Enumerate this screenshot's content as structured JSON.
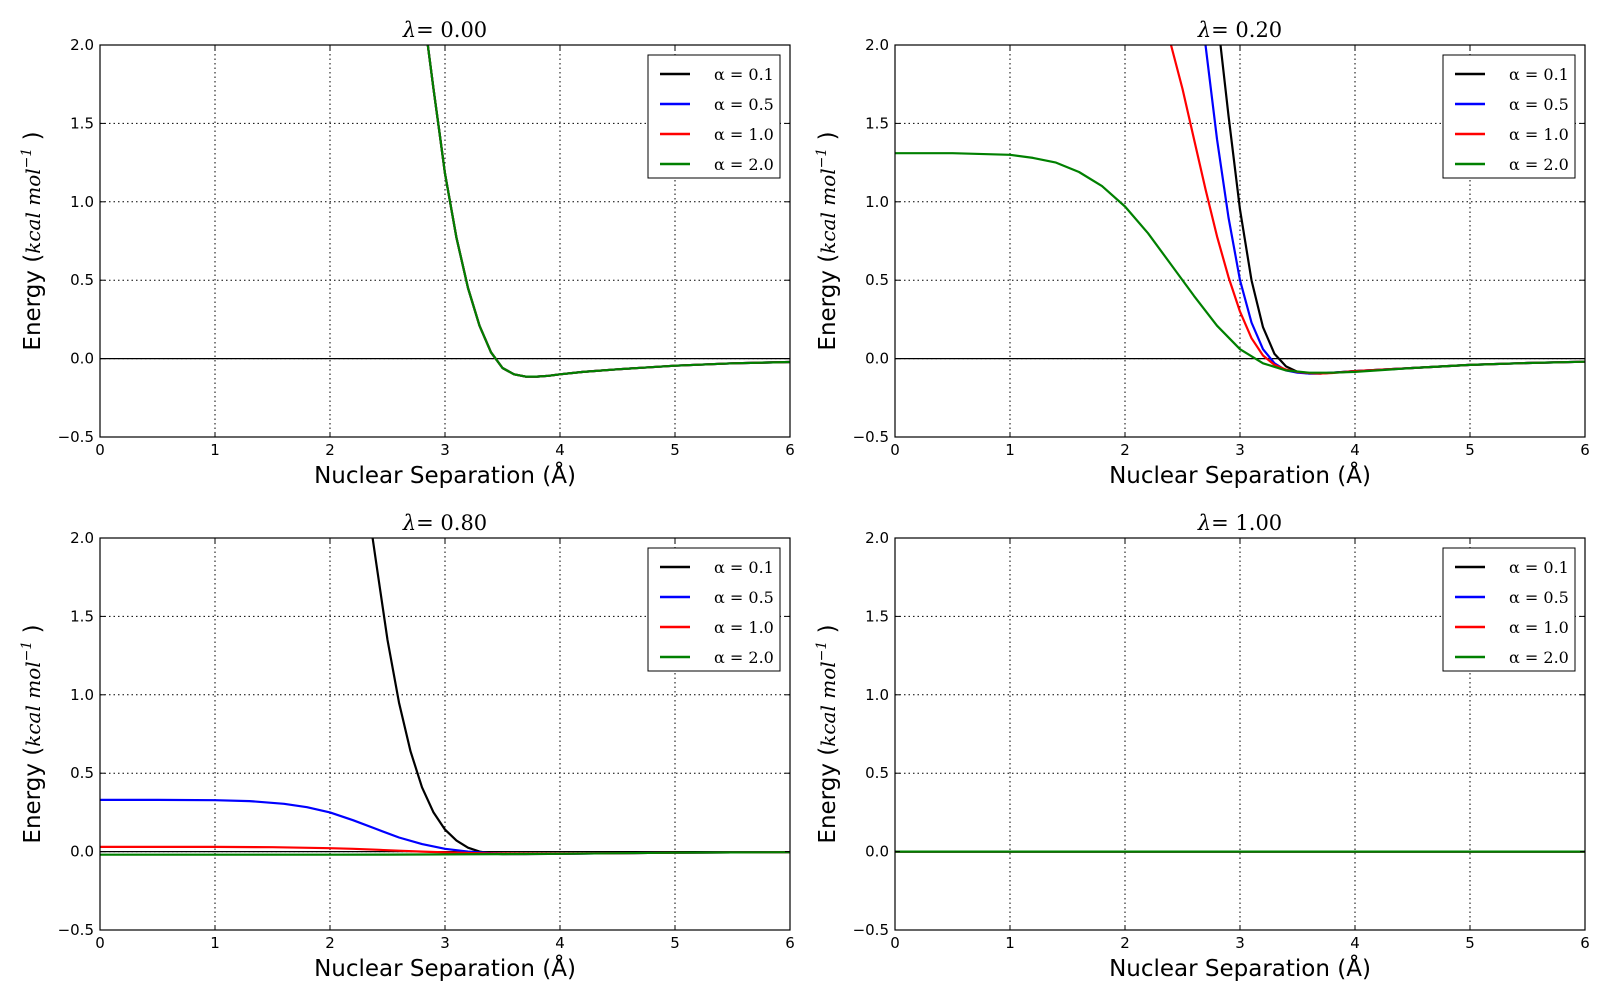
{
  "chart_data": [
    {
      "type": "line",
      "title_prefix": "λ",
      "title": "= 0.00",
      "xlabel": "Nuclear Separation (Å)",
      "ylabel": "Energy (",
      "ylabel_unit": "kcal  mol",
      "ylabel_exp": "−1",
      "ylabel_close": ")",
      "xlim": [
        0,
        6
      ],
      "ylim": [
        -0.5,
        2.0
      ],
      "xticks": [
        "0",
        "1",
        "2",
        "3",
        "4",
        "5",
        "6"
      ],
      "yticks": [
        "−0.5",
        "0.0",
        "0.5",
        "1.0",
        "1.5",
        "2.0"
      ],
      "grid": true,
      "legend": "top-right",
      "series": [
        {
          "name": "α = 0.1",
          "color": "#000000",
          "x": [
            2.85,
            2.9,
            2.95,
            3.0,
            3.1,
            3.2,
            3.3,
            3.4,
            3.5,
            3.6,
            3.7,
            3.8,
            3.9,
            4.0,
            4.2,
            4.5,
            5.0,
            5.5,
            6.0
          ],
          "y": [
            2.0,
            1.72,
            1.45,
            1.18,
            0.77,
            0.45,
            0.21,
            0.04,
            -0.06,
            -0.1,
            -0.115,
            -0.115,
            -0.11,
            -0.1,
            -0.085,
            -0.068,
            -0.045,
            -0.03,
            -0.022
          ]
        },
        {
          "name": "α = 0.5",
          "color": "#0000ff",
          "x": [
            2.85,
            2.9,
            2.95,
            3.0,
            3.1,
            3.2,
            3.3,
            3.4,
            3.5,
            3.6,
            3.7,
            3.8,
            3.9,
            4.0,
            4.2,
            4.5,
            5.0,
            5.5,
            6.0
          ],
          "y": [
            2.0,
            1.72,
            1.45,
            1.18,
            0.77,
            0.45,
            0.21,
            0.04,
            -0.06,
            -0.1,
            -0.115,
            -0.115,
            -0.11,
            -0.1,
            -0.085,
            -0.068,
            -0.045,
            -0.03,
            -0.022
          ]
        },
        {
          "name": "α = 1.0",
          "color": "#ff0000",
          "x": [
            2.85,
            2.9,
            2.95,
            3.0,
            3.1,
            3.2,
            3.3,
            3.4,
            3.5,
            3.6,
            3.7,
            3.8,
            3.9,
            4.0,
            4.2,
            4.5,
            5.0,
            5.5,
            6.0
          ],
          "y": [
            2.0,
            1.72,
            1.45,
            1.18,
            0.77,
            0.45,
            0.21,
            0.04,
            -0.06,
            -0.1,
            -0.115,
            -0.115,
            -0.11,
            -0.1,
            -0.085,
            -0.068,
            -0.045,
            -0.03,
            -0.022
          ]
        },
        {
          "name": "α = 2.0",
          "color": "#008000",
          "x": [
            2.85,
            2.9,
            2.95,
            3.0,
            3.1,
            3.2,
            3.3,
            3.4,
            3.5,
            3.6,
            3.7,
            3.8,
            3.9,
            4.0,
            4.2,
            4.5,
            5.0,
            5.5,
            6.0
          ],
          "y": [
            2.0,
            1.72,
            1.45,
            1.18,
            0.77,
            0.45,
            0.21,
            0.04,
            -0.06,
            -0.1,
            -0.115,
            -0.115,
            -0.11,
            -0.1,
            -0.085,
            -0.068,
            -0.045,
            -0.03,
            -0.022
          ]
        }
      ]
    },
    {
      "type": "line",
      "title_prefix": "λ",
      "title": "= 0.20",
      "xlabel": "Nuclear Separation (Å)",
      "ylabel": "Energy (",
      "ylabel_unit": "kcal  mol",
      "ylabel_exp": "−1",
      "ylabel_close": ")",
      "xlim": [
        0,
        6
      ],
      "ylim": [
        -0.5,
        2.0
      ],
      "xticks": [
        "0",
        "1",
        "2",
        "3",
        "4",
        "5",
        "6"
      ],
      "yticks": [
        "−0.5",
        "0.0",
        "0.5",
        "1.0",
        "1.5",
        "2.0"
      ],
      "grid": true,
      "legend": "top-right",
      "series": [
        {
          "name": "α = 0.1",
          "color": "#000000",
          "x": [
            2.83,
            2.9,
            3.0,
            3.1,
            3.2,
            3.3,
            3.4,
            3.5,
            3.6,
            3.7,
            3.8,
            4.0,
            4.5,
            5.0,
            5.5,
            6.0
          ],
          "y": [
            2.0,
            1.55,
            0.95,
            0.5,
            0.2,
            0.03,
            -0.05,
            -0.085,
            -0.095,
            -0.095,
            -0.09,
            -0.08,
            -0.06,
            -0.04,
            -0.028,
            -0.02
          ]
        },
        {
          "name": "α = 0.5",
          "color": "#0000ff",
          "x": [
            2.7,
            2.8,
            2.9,
            3.0,
            3.1,
            3.2,
            3.3,
            3.4,
            3.5,
            3.6,
            3.7,
            3.8,
            4.0,
            4.5,
            5.0,
            5.5,
            6.0
          ],
          "y": [
            2.0,
            1.4,
            0.9,
            0.5,
            0.23,
            0.06,
            -0.03,
            -0.075,
            -0.09,
            -0.095,
            -0.095,
            -0.09,
            -0.08,
            -0.06,
            -0.04,
            -0.028,
            -0.02
          ]
        },
        {
          "name": "α = 1.0",
          "color": "#ff0000",
          "x": [
            2.4,
            2.5,
            2.6,
            2.7,
            2.8,
            2.9,
            3.0,
            3.1,
            3.2,
            3.3,
            3.4,
            3.5,
            3.6,
            3.7,
            3.8,
            4.0,
            4.5,
            5.0,
            5.5,
            6.0
          ],
          "y": [
            2.0,
            1.72,
            1.4,
            1.08,
            0.78,
            0.52,
            0.3,
            0.13,
            0.02,
            -0.04,
            -0.07,
            -0.085,
            -0.092,
            -0.095,
            -0.092,
            -0.08,
            -0.06,
            -0.04,
            -0.028,
            -0.02
          ]
        },
        {
          "name": "α = 2.0",
          "color": "#008000",
          "x": [
            0,
            0.5,
            1.0,
            1.2,
            1.4,
            1.6,
            1.8,
            2.0,
            2.2,
            2.4,
            2.6,
            2.8,
            3.0,
            3.2,
            3.4,
            3.6,
            3.8,
            4.0,
            4.5,
            5.0,
            5.5,
            6.0
          ],
          "y": [
            1.31,
            1.31,
            1.3,
            1.28,
            1.25,
            1.19,
            1.1,
            0.97,
            0.8,
            0.6,
            0.4,
            0.21,
            0.06,
            -0.03,
            -0.075,
            -0.09,
            -0.09,
            -0.085,
            -0.06,
            -0.04,
            -0.028,
            -0.02
          ]
        }
      ]
    },
    {
      "type": "line",
      "title_prefix": "λ",
      "title": "= 0.80",
      "xlabel": "Nuclear Separation (Å)",
      "ylabel": "Energy (",
      "ylabel_unit": "kcal  mol",
      "ylabel_exp": "−1",
      "ylabel_close": ")",
      "xlim": [
        0,
        6
      ],
      "ylim": [
        -0.5,
        2.0
      ],
      "xticks": [
        "0",
        "1",
        "2",
        "3",
        "4",
        "5",
        "6"
      ],
      "yticks": [
        "−0.5",
        "0.0",
        "0.5",
        "1.0",
        "1.5",
        "2.0"
      ],
      "grid": true,
      "legend": "top-right",
      "series": [
        {
          "name": "α = 0.1",
          "color": "#000000",
          "x": [
            2.37,
            2.4,
            2.5,
            2.6,
            2.7,
            2.8,
            2.9,
            3.0,
            3.1,
            3.2,
            3.3,
            3.4,
            3.5,
            3.7,
            4.0,
            4.5,
            5.0,
            5.5,
            6.0
          ],
          "y": [
            2.0,
            1.85,
            1.35,
            0.95,
            0.64,
            0.41,
            0.25,
            0.14,
            0.07,
            0.025,
            0.0,
            -0.012,
            -0.016,
            -0.016,
            -0.014,
            -0.01,
            -0.007,
            -0.005,
            -0.004
          ]
        },
        {
          "name": "α = 0.5",
          "color": "#0000ff",
          "x": [
            0,
            0.5,
            1.0,
            1.3,
            1.6,
            1.8,
            2.0,
            2.2,
            2.4,
            2.6,
            2.8,
            3.0,
            3.2,
            3.4,
            3.6,
            4.0,
            4.5,
            5.0,
            5.5,
            6.0
          ],
          "y": [
            0.33,
            0.33,
            0.328,
            0.322,
            0.305,
            0.283,
            0.25,
            0.2,
            0.145,
            0.09,
            0.048,
            0.018,
            0.0,
            -0.01,
            -0.014,
            -0.014,
            -0.01,
            -0.007,
            -0.005,
            -0.004
          ]
        },
        {
          "name": "α = 1.0",
          "color": "#ff0000",
          "x": [
            0,
            0.5,
            1.0,
            1.5,
            2.0,
            2.2,
            2.4,
            2.6,
            2.8,
            3.0,
            3.2,
            3.4,
            3.6,
            4.0,
            4.5,
            5.0,
            5.5,
            6.0
          ],
          "y": [
            0.03,
            0.03,
            0.03,
            0.028,
            0.022,
            0.018,
            0.012,
            0.006,
            0.0,
            -0.005,
            -0.009,
            -0.012,
            -0.013,
            -0.013,
            -0.01,
            -0.007,
            -0.005,
            -0.004
          ]
        },
        {
          "name": "α = 2.0",
          "color": "#008000",
          "x": [
            0,
            1.0,
            2.0,
            2.5,
            3.0,
            3.5,
            4.0,
            4.5,
            5.0,
            5.5,
            6.0
          ],
          "y": [
            -0.02,
            -0.02,
            -0.02,
            -0.019,
            -0.018,
            -0.016,
            -0.014,
            -0.01,
            -0.007,
            -0.005,
            -0.004
          ]
        }
      ]
    },
    {
      "type": "line",
      "title_prefix": "λ",
      "title": "= 1.00",
      "xlabel": "Nuclear Separation (Å)",
      "ylabel": "Energy (",
      "ylabel_unit": "kcal  mol",
      "ylabel_exp": "−1",
      "ylabel_close": ")",
      "xlim": [
        0,
        6
      ],
      "ylim": [
        -0.5,
        2.0
      ],
      "xticks": [
        "0",
        "1",
        "2",
        "3",
        "4",
        "5",
        "6"
      ],
      "yticks": [
        "−0.5",
        "0.0",
        "0.5",
        "1.0",
        "1.5",
        "2.0"
      ],
      "grid": true,
      "legend": "top-right",
      "series": [
        {
          "name": "α = 0.1",
          "color": "#000000",
          "x": [
            0,
            6
          ],
          "y": [
            0,
            0
          ]
        },
        {
          "name": "α = 0.5",
          "color": "#0000ff",
          "x": [
            0,
            6
          ],
          "y": [
            0,
            0
          ]
        },
        {
          "name": "α = 1.0",
          "color": "#ff0000",
          "x": [
            0,
            6
          ],
          "y": [
            0,
            0
          ]
        },
        {
          "name": "α = 2.0",
          "color": "#008000",
          "x": [
            0,
            6
          ],
          "y": [
            0,
            0
          ]
        }
      ]
    }
  ]
}
